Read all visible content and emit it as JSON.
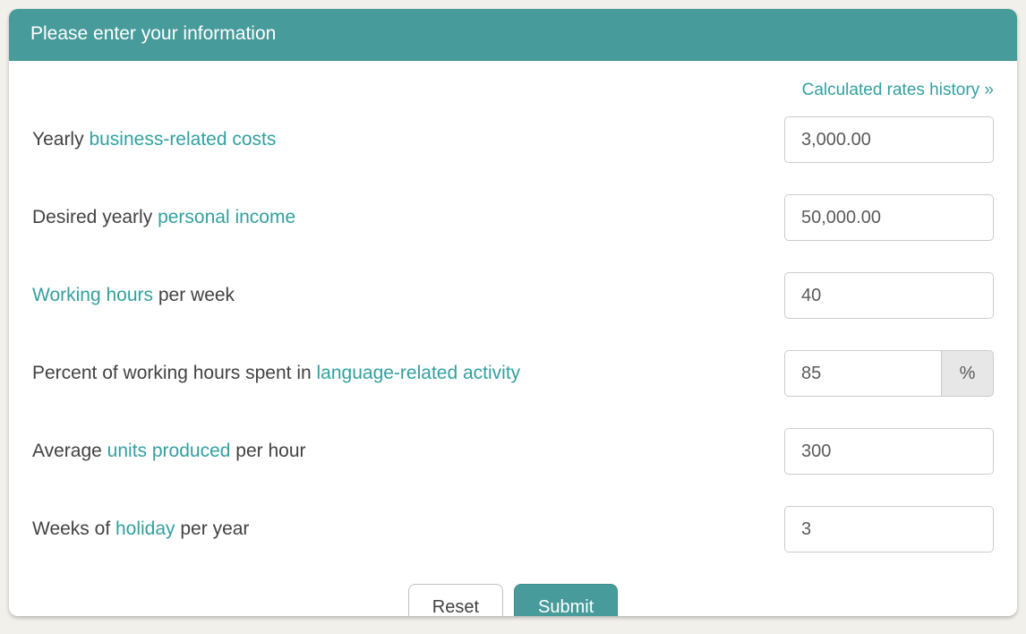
{
  "colors": {
    "accent": "#479b9b",
    "link": "#33a0a0",
    "page_bg": "#f2f0eb",
    "card_bg": "#ffffff",
    "text": "#424242",
    "input_border": "#cccccc",
    "addon_bg": "#e7e7e7"
  },
  "header": {
    "title": "Please enter your information"
  },
  "history_link": {
    "label": "Calculated rates history »"
  },
  "fields": {
    "business_costs": {
      "label_pre": "Yearly ",
      "label_link": "business-related costs",
      "label_post": "",
      "value": "3,000.00"
    },
    "personal_income": {
      "label_pre": "Desired yearly ",
      "label_link": "personal income",
      "label_post": "",
      "value": "50,000.00"
    },
    "working_hours": {
      "label_pre": "",
      "label_link": "Working hours",
      "label_post": " per week",
      "value": "40"
    },
    "percent_activity": {
      "label_pre": "Percent of working hours spent in ",
      "label_link": "language-related activity",
      "label_post": "",
      "value": "85",
      "addon": "%"
    },
    "units_produced": {
      "label_pre": "Average ",
      "label_link": "units produced",
      "label_post": " per hour",
      "value": "300"
    },
    "holiday_weeks": {
      "label_pre": "Weeks of ",
      "label_link": "holiday",
      "label_post": " per year",
      "value": "3"
    }
  },
  "buttons": {
    "reset": "Reset",
    "submit": "Submit"
  }
}
